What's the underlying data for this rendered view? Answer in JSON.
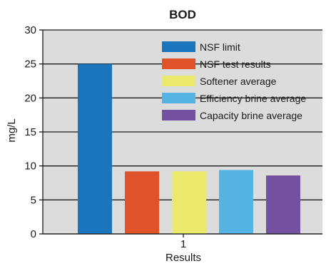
{
  "chart_data": {
    "type": "bar",
    "title": "BOD",
    "xlabel": "Results",
    "ylabel": "mg/L",
    "categories": [
      "1"
    ],
    "ylim": [
      0,
      30
    ],
    "yticks": [
      0,
      5,
      10,
      15,
      20,
      25,
      30
    ],
    "grid": true,
    "legend_position": "top-right",
    "plot_background": "#dcdcdc",
    "series": [
      {
        "name": "NSF limit",
        "values": [
          25.0
        ],
        "color": "#1b75bc"
      },
      {
        "name": "NSF test results",
        "values": [
          9.2
        ],
        "color": "#e0522a"
      },
      {
        "name": "Softener average",
        "values": [
          9.2
        ],
        "color": "#ebe96b"
      },
      {
        "name": "Efficiency brine average",
        "values": [
          9.4
        ],
        "color": "#56b4e5"
      },
      {
        "name": "Capacity brine average",
        "values": [
          8.6
        ],
        "color": "#7351a0"
      }
    ]
  }
}
